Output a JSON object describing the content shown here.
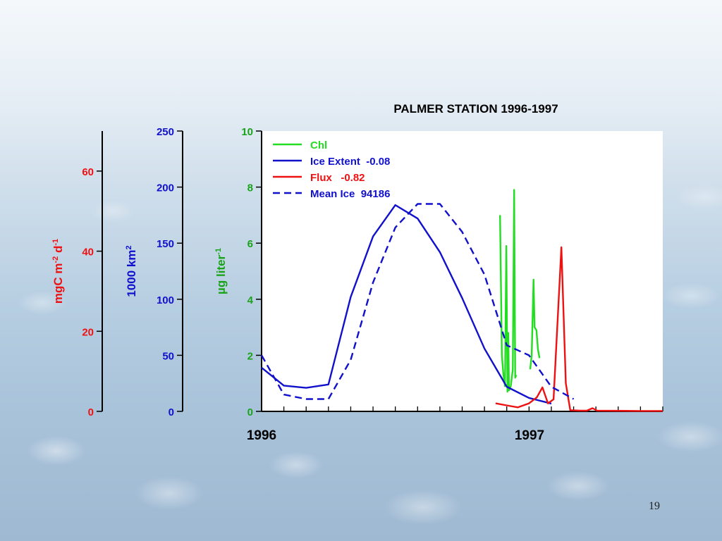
{
  "slide": {
    "number": "19"
  },
  "chart_data": {
    "type": "line",
    "title": "PALMER STATION 1996-1997",
    "x_tick_labels": [
      "1996",
      "1997"
    ],
    "x_minor_ticks": 18,
    "axes": {
      "chl": {
        "label": "µg liter-1",
        "label_main": "µg liter",
        "label_sup": "-1",
        "color": "#1aa31a",
        "range": [
          0,
          10
        ],
        "ticks": [
          "0",
          "2",
          "4",
          "6",
          "8",
          "10"
        ]
      },
      "ice": {
        "label": "1000 km2",
        "label_main": "1000 km",
        "label_sup": "2",
        "color": "#1111cc",
        "range": [
          0,
          250
        ],
        "ticks": [
          "0",
          "50",
          "100",
          "150",
          "200",
          "250"
        ]
      },
      "flux": {
        "label": "mgC m-2 d-1",
        "label_parts": [
          "mgC m",
          "-2",
          " d",
          "-1"
        ],
        "color": "#ee1111",
        "range": [
          0,
          70
        ],
        "ticks": [
          "0",
          "20",
          "40",
          "60"
        ],
        "tick_values": [
          0,
          20,
          40,
          60
        ]
      }
    },
    "legend": {
      "position": "top-left",
      "items": [
        {
          "label": "Chl",
          "color": "#22dd22",
          "style": "solid"
        },
        {
          "label": "Ice Extent  -0.08",
          "color": "#1111cc",
          "style": "solid"
        },
        {
          "label": "Flux   -0.82",
          "color": "#ee1111",
          "style": "solid"
        },
        {
          "label": "Mean Ice  94186",
          "color": "#1111cc",
          "style": "dashed"
        }
      ]
    },
    "series": [
      {
        "name": "Chl",
        "axis": "chl",
        "color": "#22dd22",
        "style": "solid",
        "segments": [
          [
            [
              10.7,
              7.0
            ],
            [
              10.78,
              2.0
            ],
            [
              10.85,
              1.3
            ],
            [
              10.92,
              0.9
            ],
            [
              10.98,
              5.9
            ],
            [
              11.03,
              0.7
            ],
            [
              11.07,
              2.8
            ],
            [
              11.1,
              0.75
            ],
            [
              11.18,
              0.9
            ],
            [
              11.27,
              1.5
            ],
            [
              11.33,
              7.9
            ],
            [
              11.38,
              1.2
            ],
            [
              11.43,
              1.3
            ]
          ],
          [
            [
              12.05,
              1.5
            ],
            [
              12.12,
              2.0
            ],
            [
              12.2,
              4.7
            ],
            [
              12.25,
              3.0
            ],
            [
              12.33,
              2.9
            ],
            [
              12.4,
              2.2
            ],
            [
              12.47,
              1.9
            ]
          ]
        ]
      },
      {
        "name": "Ice Extent",
        "axis": "ice",
        "color": "#1111cc",
        "style": "solid",
        "segments": [
          [
            [
              0,
              39
            ],
            [
              1,
              23
            ],
            [
              2,
              21
            ],
            [
              3,
              24
            ],
            [
              4,
              102
            ],
            [
              5,
              156
            ],
            [
              6,
              184
            ],
            [
              7,
              172
            ],
            [
              8,
              142
            ],
            [
              9,
              101
            ],
            [
              10,
              56
            ],
            [
              11,
              22
            ],
            [
              12,
              12
            ],
            [
              13,
              7
            ]
          ]
        ]
      },
      {
        "name": "Flux",
        "axis": "flux",
        "color": "#ee1111",
        "style": "solid",
        "segments": [
          [
            [
              10.5,
              2.0
            ],
            [
              11.0,
              1.5
            ],
            [
              11.5,
              1.0
            ],
            [
              12.0,
              2.0
            ],
            [
              12.35,
              3.5
            ],
            [
              12.6,
              6.0
            ],
            [
              12.85,
              2.0
            ],
            [
              13.1,
              3.0
            ],
            [
              13.45,
              41.0
            ],
            [
              13.65,
              7.0
            ],
            [
              13.85,
              0.3
            ],
            [
              14.3,
              0.2
            ],
            [
              14.6,
              0.2
            ],
            [
              14.85,
              0.8
            ],
            [
              15.05,
              0.2
            ],
            [
              17.0,
              0.1
            ],
            [
              18.0,
              0.1
            ]
          ]
        ]
      },
      {
        "name": "Mean Ice",
        "axis": "ice",
        "color": "#1111cc",
        "style": "dashed",
        "segments": [
          [
            [
              0,
              50
            ],
            [
              1,
              15
            ],
            [
              2,
              11
            ],
            [
              3,
              11
            ],
            [
              4,
              46
            ],
            [
              5,
              115
            ],
            [
              6,
              164
            ],
            [
              7,
              185
            ],
            [
              8,
              185
            ],
            [
              9,
              160
            ],
            [
              10,
              122
            ],
            [
              11,
              59
            ],
            [
              12,
              50
            ],
            [
              13,
              22
            ],
            [
              14,
              11
            ]
          ]
        ]
      }
    ]
  }
}
